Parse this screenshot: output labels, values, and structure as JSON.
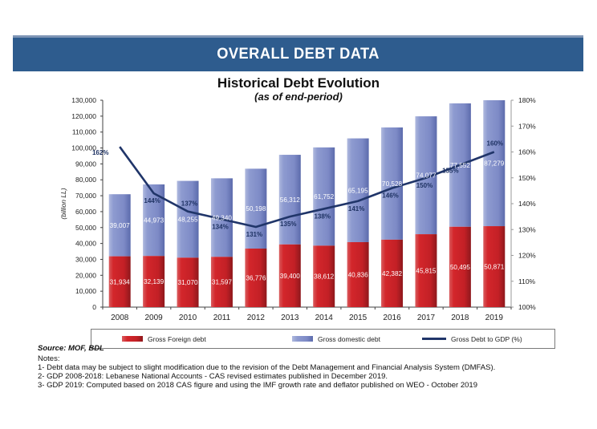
{
  "banner": {
    "title": "OVERALL DEBT DATA"
  },
  "chart_data": {
    "type": "bar",
    "subtype": "stacked-bars-with-line-overlay",
    "title": "Historical Debt Evolution",
    "subtitle": "(as of end-period)",
    "categories": [
      "2008",
      "2009",
      "2010",
      "2011",
      "2012",
      "2013",
      "2014",
      "2015",
      "2016",
      "2017",
      "2018",
      "2019"
    ],
    "series": [
      {
        "name": "Gross Foreign debt",
        "type": "bar",
        "stack": "debt",
        "color": "#ce2127",
        "values": [
          31934,
          32139,
          31070,
          31597,
          36776,
          39400,
          38612,
          40836,
          42382,
          45815,
          50495,
          50871
        ]
      },
      {
        "name": "Gross domestic debt",
        "type": "bar",
        "stack": "debt",
        "color": "#8b97ce",
        "values": [
          39007,
          44973,
          48255,
          49340,
          50198,
          56312,
          61752,
          65195,
          70528,
          74077,
          77552,
          87279
        ]
      },
      {
        "name": "Gross Debt to GDP (%)",
        "type": "line",
        "axis": "right",
        "color": "#203569",
        "values": [
          162,
          144,
          137,
          134,
          131,
          135,
          138,
          141,
          146,
          150,
          155,
          160
        ]
      }
    ],
    "left_axis": {
      "label": "(billion LL)",
      "min": 0,
      "max": 130000,
      "step": 10000
    },
    "right_axis": {
      "min": 100,
      "max": 180,
      "step": 10,
      "suffix": "%"
    },
    "grid": false,
    "legend_position": "bottom"
  },
  "footer": {
    "source": "Source: MOF, BDL",
    "notes_label": "Notes:",
    "notes": [
      "1- Debt data may be subject to slight modification due to the revision of the Debt Management and Financial Analysis System (DMFAS).",
      "2- GDP 2008-2018: Lebanese National Accounts - CAS revised estimates published in December 2019.",
      "3- GDP 2019: Computed based on 2018 CAS figure and using the IMF growth rate and deflator published on WEO - October 2019"
    ]
  }
}
